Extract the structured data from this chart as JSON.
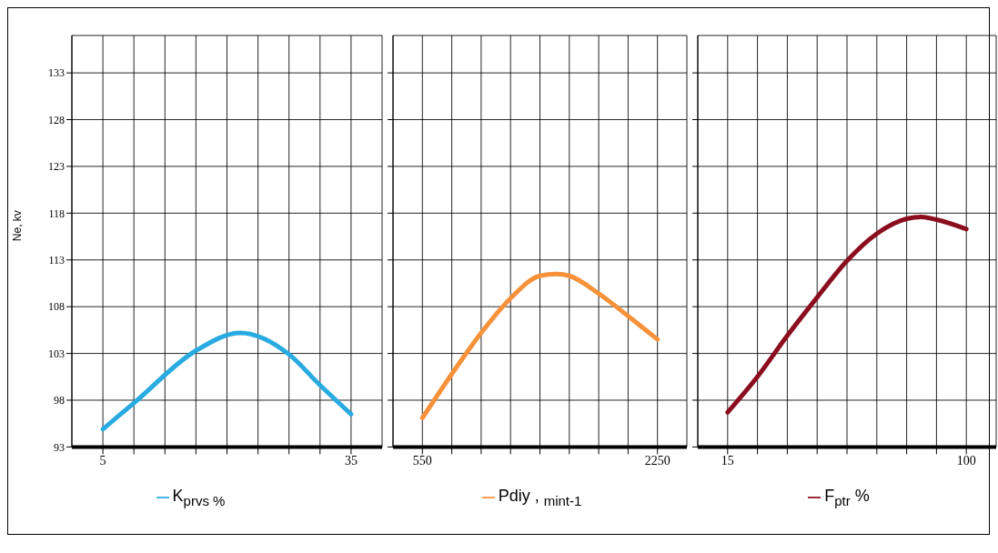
{
  "chart_data": [
    {
      "type": "line",
      "ylabel": "Ne, kv",
      "xlim": [
        1.25,
        38.75
      ],
      "ylim": [
        93,
        137
      ],
      "xticks": [
        5,
        {
          "value": 8.75,
          "label": null
        },
        {
          "value": 12.5,
          "label": null
        },
        {
          "value": 16.25,
          "label": null
        },
        {
          "value": 20,
          "label": null
        },
        {
          "value": 23.75,
          "label": null
        },
        {
          "value": 27.5,
          "label": null
        },
        {
          "value": 31.25,
          "label": null
        },
        35
      ],
      "yticks": [
        93,
        98,
        103,
        108,
        113,
        118,
        123,
        128,
        133
      ],
      "x": [
        5,
        8.75,
        16.25,
        21.6,
        27.5,
        31.25,
        35
      ],
      "series": [
        {
          "name": "K$_{prvs %}$",
          "color": "#29abe2",
          "values": [
            94.9,
            97.7,
            103.3,
            105.2,
            102.9,
            99.6,
            96.5
          ]
        }
      ],
      "grid": true,
      "legend": "bottom"
    },
    {
      "type": "line",
      "xlim": [
        337.5,
        2462.5
      ],
      "ylim": [
        93,
        137
      ],
      "xticks": [
        550,
        {
          "value": 762.5,
          "label": null
        },
        {
          "value": 975,
          "label": null
        },
        {
          "value": 1187.5,
          "label": null
        },
        {
          "value": 1400,
          "label": null
        },
        {
          "value": 1612.5,
          "label": null
        },
        {
          "value": 1825,
          "label": null
        },
        {
          "value": 2037.5,
          "label": null
        },
        2250
      ],
      "yticks": [
        93,
        98,
        103,
        108,
        113,
        118,
        123,
        128,
        133
      ],
      "x": [
        550,
        762.5,
        975,
        1187.5,
        1400,
        1521,
        1612.5,
        1825,
        2037.5,
        2250
      ],
      "series": [
        {
          "name": "Pdiy , $_{mint-1}$",
          "color": "#f7923a",
          "values": [
            96.1,
            100.8,
            105.2,
            108.9,
            111.3,
            111.5,
            111.3,
            109.4,
            107.0,
            104.5
          ]
        }
      ],
      "grid": true,
      "legend": "bottom",
      "tick_labels": "x"
    },
    {
      "type": "line",
      "xlim": [
        4.375,
        110.625
      ],
      "ylim": [
        93,
        137
      ],
      "xticks": [
        15,
        {
          "value": 25.625,
          "label": null
        },
        {
          "value": 36.25,
          "label": null
        },
        {
          "value": 46.875,
          "label": null
        },
        {
          "value": 57.5,
          "label": null
        },
        {
          "value": 68.125,
          "label": null
        },
        {
          "value": 78.75,
          "label": null
        },
        {
          "value": 89.375,
          "label": null
        },
        100
      ],
      "yticks": [
        93,
        98,
        103,
        108,
        113,
        118,
        123,
        128,
        133
      ],
      "x": [
        15,
        25.6,
        36.25,
        46.9,
        57.5,
        68.1,
        78.75,
        84,
        89.4,
        100
      ],
      "series": [
        {
          "name": "F$_{ptr}$ %",
          "color": "#8b0e1e",
          "values": [
            96.7,
            100.5,
            104.9,
            109.0,
            112.9,
            115.8,
            117.4,
            117.6,
            117.3,
            116.3
          ]
        }
      ],
      "grid": true,
      "legend": "bottom",
      "tick_labels": "x"
    }
  ]
}
